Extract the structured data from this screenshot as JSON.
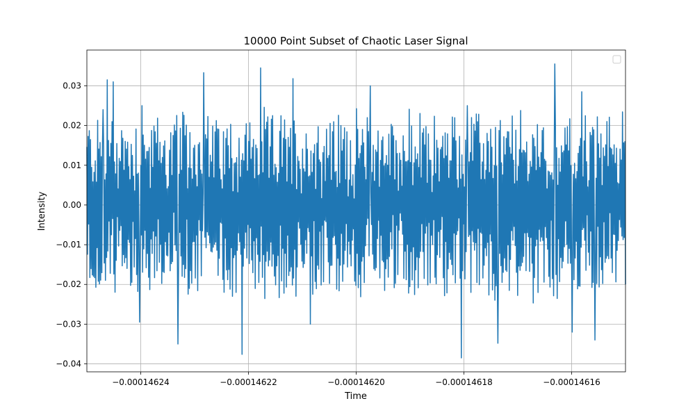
{
  "chart_data": {
    "type": "line",
    "title": "10000 Point Subset of Chaotic Laser Signal",
    "xlabel": "Time",
    "ylabel": "Intensity",
    "xlim": [
      -0.00014625,
      -0.00014615
    ],
    "ylim": [
      -0.042,
      0.039
    ],
    "x_ticks": [
      -0.00014624,
      -0.00014622,
      -0.0001462,
      -0.00014618,
      -0.00014616
    ],
    "x_tick_labels": [
      "−0.00014624",
      "−0.00014622",
      "−0.00014620",
      "−0.00014618",
      "−0.00014616"
    ],
    "y_ticks": [
      -0.04,
      -0.03,
      -0.02,
      -0.01,
      0.0,
      0.01,
      0.02,
      0.03
    ],
    "y_tick_labels": [
      "−0.04",
      "−0.03",
      "−0.02",
      "−0.01",
      "0.00",
      "0.01",
      "0.02",
      "0.03"
    ],
    "grid": true,
    "legend": "top-right",
    "series": [
      {
        "color": "#1f77b4",
        "x_range": [
          -0.00014625,
          -0.00014615
        ],
        "extremes": [
          {
            "x": -0.000146247,
            "y": 0.024
          },
          {
            "x": -0.0001462462,
            "y": 0.0315
          },
          {
            "x": -0.0001462451,
            "y": 0.031
          },
          {
            "x": -0.0001462402,
            "y": -0.0295
          },
          {
            "x": -0.0001462398,
            "y": 0.025
          },
          {
            "x": -0.0001462331,
            "y": -0.035
          },
          {
            "x": -0.0001462283,
            "y": 0.0333
          },
          {
            "x": -0.0001462212,
            "y": -0.0376
          },
          {
            "x": -0.0001462177,
            "y": 0.0345
          },
          {
            "x": -0.0001462117,
            "y": 0.0318
          },
          {
            "x": -0.0001462085,
            "y": -0.03
          },
          {
            "x": -0.0001461974,
            "y": 0.03
          },
          {
            "x": -0.0001461805,
            "y": -0.0385
          },
          {
            "x": -0.0001461794,
            "y": 0.025
          },
          {
            "x": -0.0001461737,
            "y": -0.0348
          },
          {
            "x": -0.0001461631,
            "y": 0.0355
          },
          {
            "x": -0.0001461599,
            "y": -0.032
          },
          {
            "x": -0.0001461581,
            "y": 0.0285
          },
          {
            "x": -0.0001461557,
            "y": -0.034
          }
        ]
      }
    ]
  }
}
